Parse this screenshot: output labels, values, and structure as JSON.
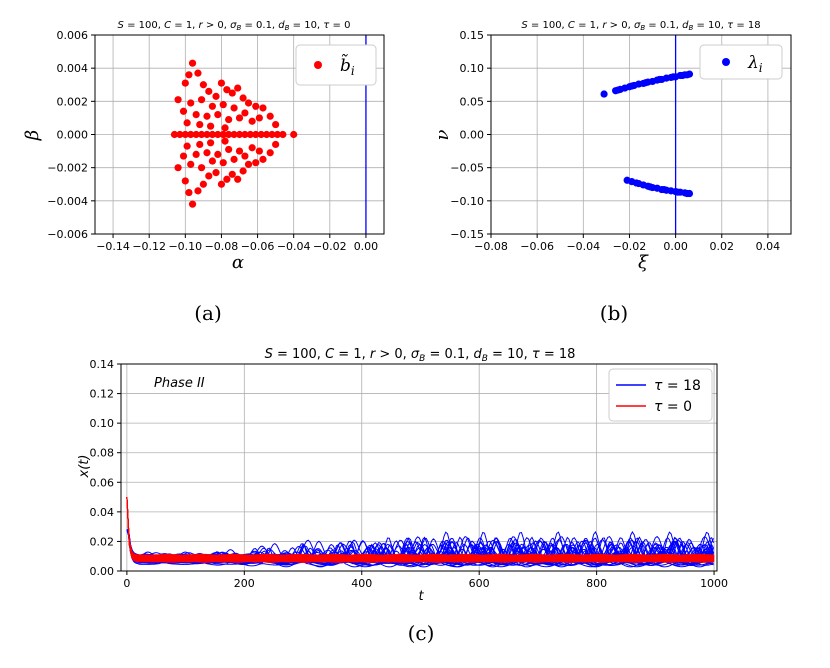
{
  "chart_data": [
    {
      "type": "scatter",
      "panel": "a",
      "caption": "(a)",
      "title": "S = 100,  C = 1,  r > 0,  σ_B = 0.1,  d_B = 10,  τ = 0",
      "xlabel": "α",
      "ylabel": "β",
      "xlim": [
        -0.15,
        0.01
      ],
      "ylim": [
        -0.006,
        0.006
      ],
      "xticks": [
        -0.14,
        -0.12,
        -0.1,
        -0.08,
        -0.06,
        -0.04,
        -0.02,
        0.0
      ],
      "yticks": [
        -0.006,
        -0.004,
        -0.002,
        0.0,
        0.002,
        0.004,
        0.006
      ],
      "xtick_labels": [
        "−0.14",
        "−0.12",
        "−0.10",
        "−0.08",
        "−0.06",
        "−0.04",
        "−0.02",
        "0.00"
      ],
      "ytick_labels": [
        "−0.006",
        "−0.004",
        "−0.002",
        "0.000",
        "0.002",
        "0.004",
        "0.006"
      ],
      "grid": true,
      "vline": {
        "x": 0.0,
        "color": "#0000ff"
      },
      "legend": {
        "label": "b̃ᵢ",
        "placement": "top-right"
      },
      "series": [
        {
          "name": "b̃ᵢ",
          "color": "#ff0000",
          "points": [
            [
              -0.106,
              0.0
            ],
            [
              -0.103,
              0.0
            ],
            [
              -0.1,
              0.0
            ],
            [
              -0.097,
              0.0
            ],
            [
              -0.094,
              0.0
            ],
            [
              -0.091,
              0.0
            ],
            [
              -0.088,
              0.0
            ],
            [
              -0.085,
              0.0
            ],
            [
              -0.082,
              0.0
            ],
            [
              -0.079,
              0.0
            ],
            [
              -0.076,
              0.0
            ],
            [
              -0.073,
              0.0
            ],
            [
              -0.07,
              0.0
            ],
            [
              -0.067,
              0.0
            ],
            [
              -0.064,
              0.0
            ],
            [
              -0.061,
              0.0
            ],
            [
              -0.058,
              0.0
            ],
            [
              -0.055,
              0.0
            ],
            [
              -0.052,
              0.0
            ],
            [
              -0.049,
              0.0
            ],
            [
              -0.046,
              0.0
            ],
            [
              -0.04,
              0.0
            ],
            [
              -0.096,
              0.0043
            ],
            [
              -0.096,
              -0.0042
            ],
            [
              -0.098,
              0.0036
            ],
            [
              -0.098,
              -0.0035
            ],
            [
              -0.093,
              0.0037
            ],
            [
              -0.093,
              -0.0034
            ],
            [
              -0.09,
              0.003
            ],
            [
              -0.09,
              -0.003
            ],
            [
              -0.1,
              0.0031
            ],
            [
              -0.1,
              -0.0028
            ],
            [
              -0.087,
              0.0026
            ],
            [
              -0.087,
              -0.0025
            ],
            [
              -0.083,
              0.0023
            ],
            [
              -0.083,
              -0.0023
            ],
            [
              -0.08,
              0.0031
            ],
            [
              -0.08,
              -0.003
            ],
            [
              -0.077,
              0.0027
            ],
            [
              -0.077,
              -0.0027
            ],
            [
              -0.074,
              0.0025
            ],
            [
              -0.074,
              -0.0024
            ],
            [
              -0.071,
              0.0028
            ],
            [
              -0.071,
              -0.0027
            ],
            [
              -0.068,
              0.0022
            ],
            [
              -0.068,
              -0.0022
            ],
            [
              -0.065,
              0.0019
            ],
            [
              -0.065,
              -0.0018
            ],
            [
              -0.061,
              0.0017
            ],
            [
              -0.061,
              -0.0017
            ],
            [
              -0.057,
              0.0016
            ],
            [
              -0.057,
              -0.0015
            ],
            [
              -0.053,
              0.0011
            ],
            [
              -0.053,
              -0.0011
            ],
            [
              -0.104,
              0.0021
            ],
            [
              -0.104,
              -0.002
            ],
            [
              -0.101,
              0.0014
            ],
            [
              -0.101,
              -0.0013
            ],
            [
              -0.097,
              0.0019
            ],
            [
              -0.097,
              -0.0018
            ],
            [
              -0.094,
              0.0012
            ],
            [
              -0.094,
              -0.0012
            ],
            [
              -0.091,
              0.0021
            ],
            [
              -0.091,
              -0.002
            ],
            [
              -0.088,
              0.0011
            ],
            [
              -0.088,
              -0.0011
            ],
            [
              -0.085,
              0.0017
            ],
            [
              -0.085,
              -0.0016
            ],
            [
              -0.082,
              0.0012
            ],
            [
              -0.082,
              -0.0012
            ],
            [
              -0.079,
              0.0018
            ],
            [
              -0.079,
              -0.0017
            ],
            [
              -0.076,
              0.0009
            ],
            [
              -0.076,
              -0.0009
            ],
            [
              -0.073,
              0.0016
            ],
            [
              -0.073,
              -0.0015
            ],
            [
              -0.07,
              0.001
            ],
            [
              -0.07,
              -0.001
            ],
            [
              -0.067,
              0.0013
            ],
            [
              -0.067,
              -0.0013
            ],
            [
              -0.063,
              0.0008
            ],
            [
              -0.063,
              -0.0008
            ],
            [
              -0.059,
              0.001
            ],
            [
              -0.059,
              -0.001
            ],
            [
              -0.05,
              0.0006
            ],
            [
              -0.05,
              -0.0006
            ],
            [
              -0.099,
              0.0007
            ],
            [
              -0.099,
              -0.0007
            ],
            [
              -0.092,
              0.0006
            ],
            [
              -0.092,
              -0.0006
            ],
            [
              -0.086,
              0.0005
            ],
            [
              -0.086,
              -0.0005
            ],
            [
              -0.078,
              0.0004
            ],
            [
              -0.078,
              -0.0004
            ]
          ]
        }
      ]
    },
    {
      "type": "scatter",
      "panel": "b",
      "caption": "(b)",
      "title": "S = 100,  C = 1,  r > 0,  σ_B = 0.1,  d_B = 10,  τ = 18",
      "xlabel": "ξ",
      "ylabel": "ν",
      "xlim": [
        -0.08,
        0.05
      ],
      "ylim": [
        -0.15,
        0.15
      ],
      "xticks": [
        -0.08,
        -0.06,
        -0.04,
        -0.02,
        0.0,
        0.02,
        0.04
      ],
      "yticks": [
        -0.15,
        -0.1,
        -0.05,
        0.0,
        0.05,
        0.1,
        0.15
      ],
      "xtick_labels": [
        "−0.08",
        "−0.06",
        "−0.04",
        "−0.02",
        "0.00",
        "0.02",
        "0.04"
      ],
      "ytick_labels": [
        "−0.15",
        "−0.10",
        "−0.05",
        "0.00",
        "0.05",
        "0.10",
        "0.15"
      ],
      "grid": true,
      "vline": {
        "x": 0.0,
        "color": "#0000ff"
      },
      "legend": {
        "label": "λᵢ",
        "placement": "top-right"
      },
      "series": [
        {
          "name": "λᵢ",
          "color": "#0000ff",
          "points": [
            [
              -0.031,
              0.061
            ],
            [
              -0.026,
              0.066
            ],
            [
              -0.024,
              0.068
            ],
            [
              -0.022,
              0.07
            ],
            [
              -0.02,
              0.072
            ],
            [
              -0.018,
              0.074
            ],
            [
              -0.016,
              0.076
            ],
            [
              -0.014,
              0.077
            ],
            [
              -0.012,
              0.079
            ],
            [
              -0.01,
              0.08
            ],
            [
              -0.008,
              0.082
            ],
            [
              -0.006,
              0.083
            ],
            [
              -0.004,
              0.085
            ],
            [
              -0.002,
              0.086
            ],
            [
              0.0,
              0.087
            ],
            [
              0.002,
              0.089
            ],
            [
              0.004,
              0.09
            ],
            [
              0.006,
              0.091
            ],
            [
              -0.025,
              0.067
            ],
            [
              -0.019,
              0.073
            ],
            [
              -0.013,
              0.078
            ],
            [
              -0.007,
              0.083
            ],
            [
              -0.001,
              0.087
            ],
            [
              0.003,
              0.089
            ],
            [
              0.005,
              0.09
            ],
            [
              -0.021,
              -0.069
            ],
            [
              -0.019,
              -0.071
            ],
            [
              -0.016,
              -0.074
            ],
            [
              -0.014,
              -0.076
            ],
            [
              -0.012,
              -0.078
            ],
            [
              -0.01,
              -0.08
            ],
            [
              -0.008,
              -0.081
            ],
            [
              -0.006,
              -0.083
            ],
            [
              -0.004,
              -0.084
            ],
            [
              -0.002,
              -0.085
            ],
            [
              0.0,
              -0.086
            ],
            [
              0.002,
              -0.087
            ],
            [
              0.004,
              -0.088
            ],
            [
              0.006,
              -0.089
            ],
            [
              -0.017,
              -0.073
            ],
            [
              -0.011,
              -0.079
            ],
            [
              -0.005,
              -0.083
            ],
            [
              0.001,
              -0.087
            ],
            [
              0.005,
              -0.089
            ]
          ]
        }
      ]
    },
    {
      "type": "line",
      "panel": "c",
      "caption": "(c)",
      "title": "S = 100,  C = 1,  r > 0,  σ_B = 0.1,  d_B = 10,  τ = 18",
      "xlabel": "t",
      "ylabel": "x(t)",
      "annotation": "Phase II",
      "xlim": [
        -10,
        1005
      ],
      "ylim": [
        0.0,
        0.14
      ],
      "xticks": [
        0,
        200,
        400,
        600,
        800,
        1000
      ],
      "yticks": [
        0.0,
        0.02,
        0.04,
        0.06,
        0.08,
        0.1,
        0.12,
        0.14
      ],
      "xtick_labels": [
        "0",
        "200",
        "400",
        "600",
        "800",
        "1000"
      ],
      "ytick_labels": [
        "0.00",
        "0.02",
        "0.04",
        "0.06",
        "0.08",
        "0.10",
        "0.12",
        "0.14"
      ],
      "grid": true,
      "legend": {
        "placement": "top-right",
        "entries": [
          "τ = 18",
          "τ = 0"
        ]
      },
      "series": [
        {
          "name": "τ = 18",
          "color": "#0000ff",
          "trajectories": 100,
          "initial": 0.05,
          "baseline": 0.008,
          "oscillation_range": [
            0.002,
            0.027
          ]
        },
        {
          "name": "τ = 0",
          "color": "#ff0000",
          "trajectories": 100,
          "initial": 0.05,
          "steady_range": [
            0.006,
            0.011
          ]
        }
      ]
    }
  ]
}
